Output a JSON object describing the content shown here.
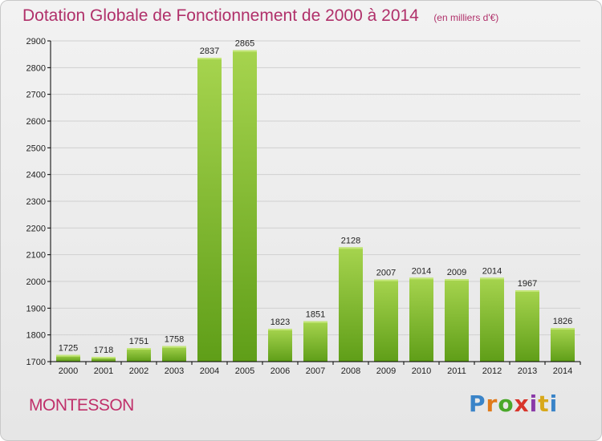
{
  "title": "Dotation Globale de Fonctionnement de 2000 à 2014",
  "subtitle": "(en milliers d'€)",
  "commune": "MONTESSON",
  "brand": "Proxiti",
  "brand_colors": [
    "#3a84c8",
    "#e07a1a",
    "#4aa82a",
    "#d8342a",
    "#8a3aa8",
    "#d8a81a",
    "#3a84c8"
  ],
  "colors": {
    "title": "#b0306a",
    "bar_light": "#a6d44e",
    "bar_dark": "#5f9e18",
    "grid": "#d0d0d0",
    "axis": "#000000"
  },
  "chart_data": {
    "type": "bar",
    "categories": [
      "2000",
      "2001",
      "2002",
      "2003",
      "2004",
      "2005",
      "2006",
      "2007",
      "2008",
      "2009",
      "2010",
      "2011",
      "2012",
      "2013",
      "2014"
    ],
    "values": [
      1725,
      1718,
      1751,
      1758,
      2837,
      2865,
      1823,
      1851,
      2128,
      2007,
      2014,
      2009,
      2014,
      1967,
      1826
    ],
    "title": "Dotation Globale de Fonctionnement de 2000 à 2014",
    "subtitle": "(en milliers d'€)",
    "xlabel": "",
    "ylabel": "",
    "ylim": [
      1700,
      2900
    ],
    "yticks": [
      1700,
      1800,
      1900,
      2000,
      2100,
      2200,
      2300,
      2400,
      2500,
      2600,
      2700,
      2800,
      2900
    ],
    "grid": true,
    "legend": "none"
  }
}
